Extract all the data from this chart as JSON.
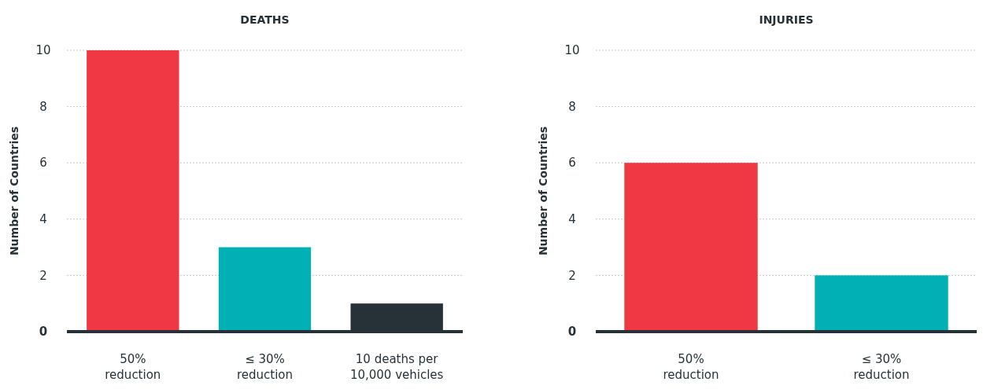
{
  "chart_data": [
    {
      "type": "bar",
      "title": "DEATHS",
      "ylabel": "Number of Countries",
      "categories": [
        "50%\nreduction",
        "≤ 30%\nreduction",
        "10 deaths per\n10,000 vehicles"
      ],
      "values": [
        10,
        3,
        1
      ],
      "colors": [
        "#ef3843",
        "#00b0b5",
        "#263238"
      ],
      "ylim": [
        0,
        10
      ],
      "yticks": [
        0,
        2,
        4,
        6,
        8,
        10
      ],
      "grid": "y"
    },
    {
      "type": "bar",
      "title": "INJURIES",
      "ylabel": "Number of Countries",
      "categories": [
        "50%\nreduction",
        "≤ 30%\nreduction"
      ],
      "values": [
        6,
        2
      ],
      "colors": [
        "#ef3843",
        "#00b0b5"
      ],
      "ylim": [
        0,
        10
      ],
      "yticks": [
        0,
        2,
        4,
        6,
        8,
        10
      ],
      "grid": "y"
    }
  ]
}
